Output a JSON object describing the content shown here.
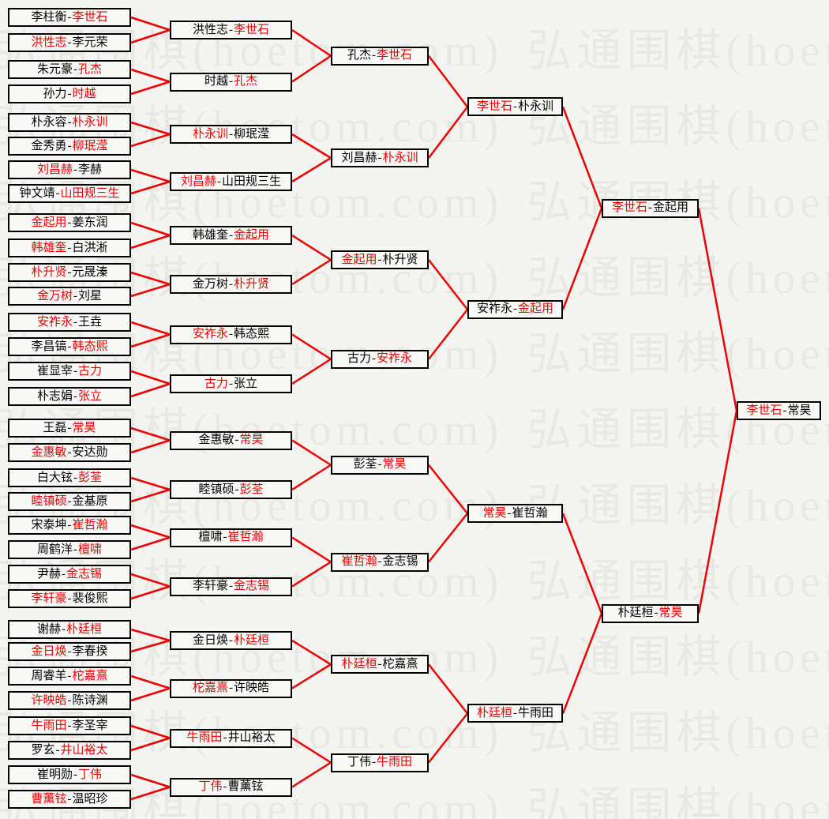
{
  "separator": "-",
  "watermark": {
    "text": "弘通围棋(hoetom.com)"
  },
  "colors": {
    "winner_text": "#ee0000",
    "player_text": "#000000",
    "connector_line": "#ee0000",
    "box_border": "#000000",
    "box_background": "#f8f8f6",
    "page_background": "#f4f4f2",
    "watermark_text": "#e7e7e4"
  },
  "bracket": {
    "rounds": [
      [
        {
          "p1": "李柱衡",
          "p2": "李世石",
          "w": 2
        },
        {
          "p1": "洪性志",
          "p2": "李元荣",
          "w": 1
        },
        {
          "p1": "朱元豪",
          "p2": "孔杰",
          "w": 2
        },
        {
          "p1": "孙力",
          "p2": "时越",
          "w": 2
        },
        {
          "p1": "朴永容",
          "p2": "朴永训",
          "w": 2
        },
        {
          "p1": "金秀勇",
          "p2": "柳珉滢",
          "w": 2
        },
        {
          "p1": "刘昌赫",
          "p2": "李赫",
          "w": 1
        },
        {
          "p1": "钟文靖",
          "p2": "山田规三生",
          "w": 2
        },
        {
          "p1": "金起用",
          "p2": "姜东润",
          "w": 1
        },
        {
          "p1": "韩雄奎",
          "p2": "白洪淅",
          "w": 1
        },
        {
          "p1": "朴升贤",
          "p2": "元晟溱",
          "w": 1
        },
        {
          "p1": "金万树",
          "p2": "刘星",
          "w": 1
        },
        {
          "p1": "安祚永",
          "p2": "王垚",
          "w": 1
        },
        {
          "p1": "李昌镐",
          "p2": "韩态熙",
          "w": 2
        },
        {
          "p1": "崔显宰",
          "p2": "古力",
          "w": 2
        },
        {
          "p1": "朴志娟",
          "p2": "张立",
          "w": 2
        },
        {
          "p1": "王磊",
          "p2": "常昊",
          "w": 2
        },
        {
          "p1": "金惠敏",
          "p2": "安达勋",
          "w": 1
        },
        {
          "p1": "白大铉",
          "p2": "彭荃",
          "w": 2
        },
        {
          "p1": "睦镇硕",
          "p2": "金基原",
          "w": 1
        },
        {
          "p1": "宋泰坤",
          "p2": "崔哲瀚",
          "w": 2
        },
        {
          "p1": "周鹤洋",
          "p2": "檀啸",
          "w": 2
        },
        {
          "p1": "尹赫",
          "p2": "金志锡",
          "w": 2
        },
        {
          "p1": "李轩豪",
          "p2": "裴俊熙",
          "w": 1
        },
        {
          "p1": "谢赫",
          "p2": "朴廷桓",
          "w": 2
        },
        {
          "p1": "金日焕",
          "p2": "李春揆",
          "w": 1
        },
        {
          "p1": "周睿羊",
          "p2": "柁嘉熹",
          "w": 2
        },
        {
          "p1": "许映皓",
          "p2": "陈诗渊",
          "w": 1
        },
        {
          "p1": "牛雨田",
          "p2": "李圣宰",
          "w": 1
        },
        {
          "p1": "罗玄",
          "p2": "井山裕太",
          "w": 2
        },
        {
          "p1": "崔明勋",
          "p2": "丁伟",
          "w": 2
        },
        {
          "p1": "曹薰铉",
          "p2": "温昭珍",
          "w": 1
        }
      ],
      [
        {
          "p1": "洪性志",
          "p2": "李世石",
          "w": 2
        },
        {
          "p1": "时越",
          "p2": "孔杰",
          "w": 2
        },
        {
          "p1": "朴永训",
          "p2": "柳珉滢",
          "w": 1
        },
        {
          "p1": "刘昌赫",
          "p2": "山田规三生",
          "w": 1
        },
        {
          "p1": "韩雄奎",
          "p2": "金起用",
          "w": 2
        },
        {
          "p1": "金万树",
          "p2": "朴升贤",
          "w": 2
        },
        {
          "p1": "安祚永",
          "p2": "韩态熙",
          "w": 1
        },
        {
          "p1": "古力",
          "p2": "张立",
          "w": 1
        },
        {
          "p1": "金惠敏",
          "p2": "常昊",
          "w": 2
        },
        {
          "p1": "睦镇硕",
          "p2": "彭荃",
          "w": 2
        },
        {
          "p1": "檀啸",
          "p2": "崔哲瀚",
          "w": 2
        },
        {
          "p1": "李轩豪",
          "p2": "金志锡",
          "w": 2
        },
        {
          "p1": "金日焕",
          "p2": "朴廷桓",
          "w": 2
        },
        {
          "p1": "柁嘉熹",
          "p2": "许映皓",
          "w": 1
        },
        {
          "p1": "牛雨田",
          "p2": "井山裕太",
          "w": 1
        },
        {
          "p1": "丁伟",
          "p2": "曹薰铉",
          "w": 1
        }
      ],
      [
        {
          "p1": "孔杰",
          "p2": "李世石",
          "w": 2
        },
        {
          "p1": "刘昌赫",
          "p2": "朴永训",
          "w": 2
        },
        {
          "p1": "金起用",
          "p2": "朴升贤",
          "w": 1
        },
        {
          "p1": "古力",
          "p2": "安祚永",
          "w": 2
        },
        {
          "p1": "彭荃",
          "p2": "常昊",
          "w": 2
        },
        {
          "p1": "崔哲瀚",
          "p2": "金志锡",
          "w": 1
        },
        {
          "p1": "朴廷桓",
          "p2": "柁嘉熹",
          "w": 1
        },
        {
          "p1": "丁伟",
          "p2": "牛雨田",
          "w": 2
        }
      ],
      [
        {
          "p1": "李世石",
          "p2": "朴永训",
          "w": 1
        },
        {
          "p1": "安祚永",
          "p2": "金起用",
          "w": 2
        },
        {
          "p1": "常昊",
          "p2": "崔哲瀚",
          "w": 1
        },
        {
          "p1": "朴廷桓",
          "p2": "牛雨田",
          "w": 1
        }
      ],
      [
        {
          "p1": "李世石",
          "p2": "金起用",
          "w": 1
        },
        {
          "p1": "朴廷桓",
          "p2": "常昊",
          "w": 2
        }
      ],
      [
        {
          "p1": "李世石",
          "p2": "常昊",
          "w": 1
        }
      ]
    ]
  }
}
